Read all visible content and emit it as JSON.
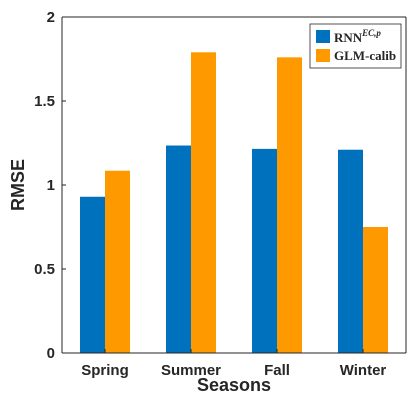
{
  "chart_data": {
    "type": "bar",
    "categories": [
      "Spring",
      "Summer",
      "Fall",
      "Winter"
    ],
    "series": [
      {
        "name_base": "RNN",
        "name_sup": "EC,p",
        "color": "#0072BD",
        "values": [
          0.93,
          1.235,
          1.215,
          1.21
        ]
      },
      {
        "name": "GLM-calib",
        "color": "#FF9900",
        "values": [
          1.085,
          1.79,
          1.76,
          0.75
        ]
      }
    ],
    "xlabel": "Seasons",
    "ylabel": "RMSE",
    "ylim": [
      0,
      2
    ],
    "yticks": [
      "0",
      "0.5",
      "1",
      "1.5",
      "2"
    ],
    "grid": false,
    "legend_position": "top-right"
  }
}
